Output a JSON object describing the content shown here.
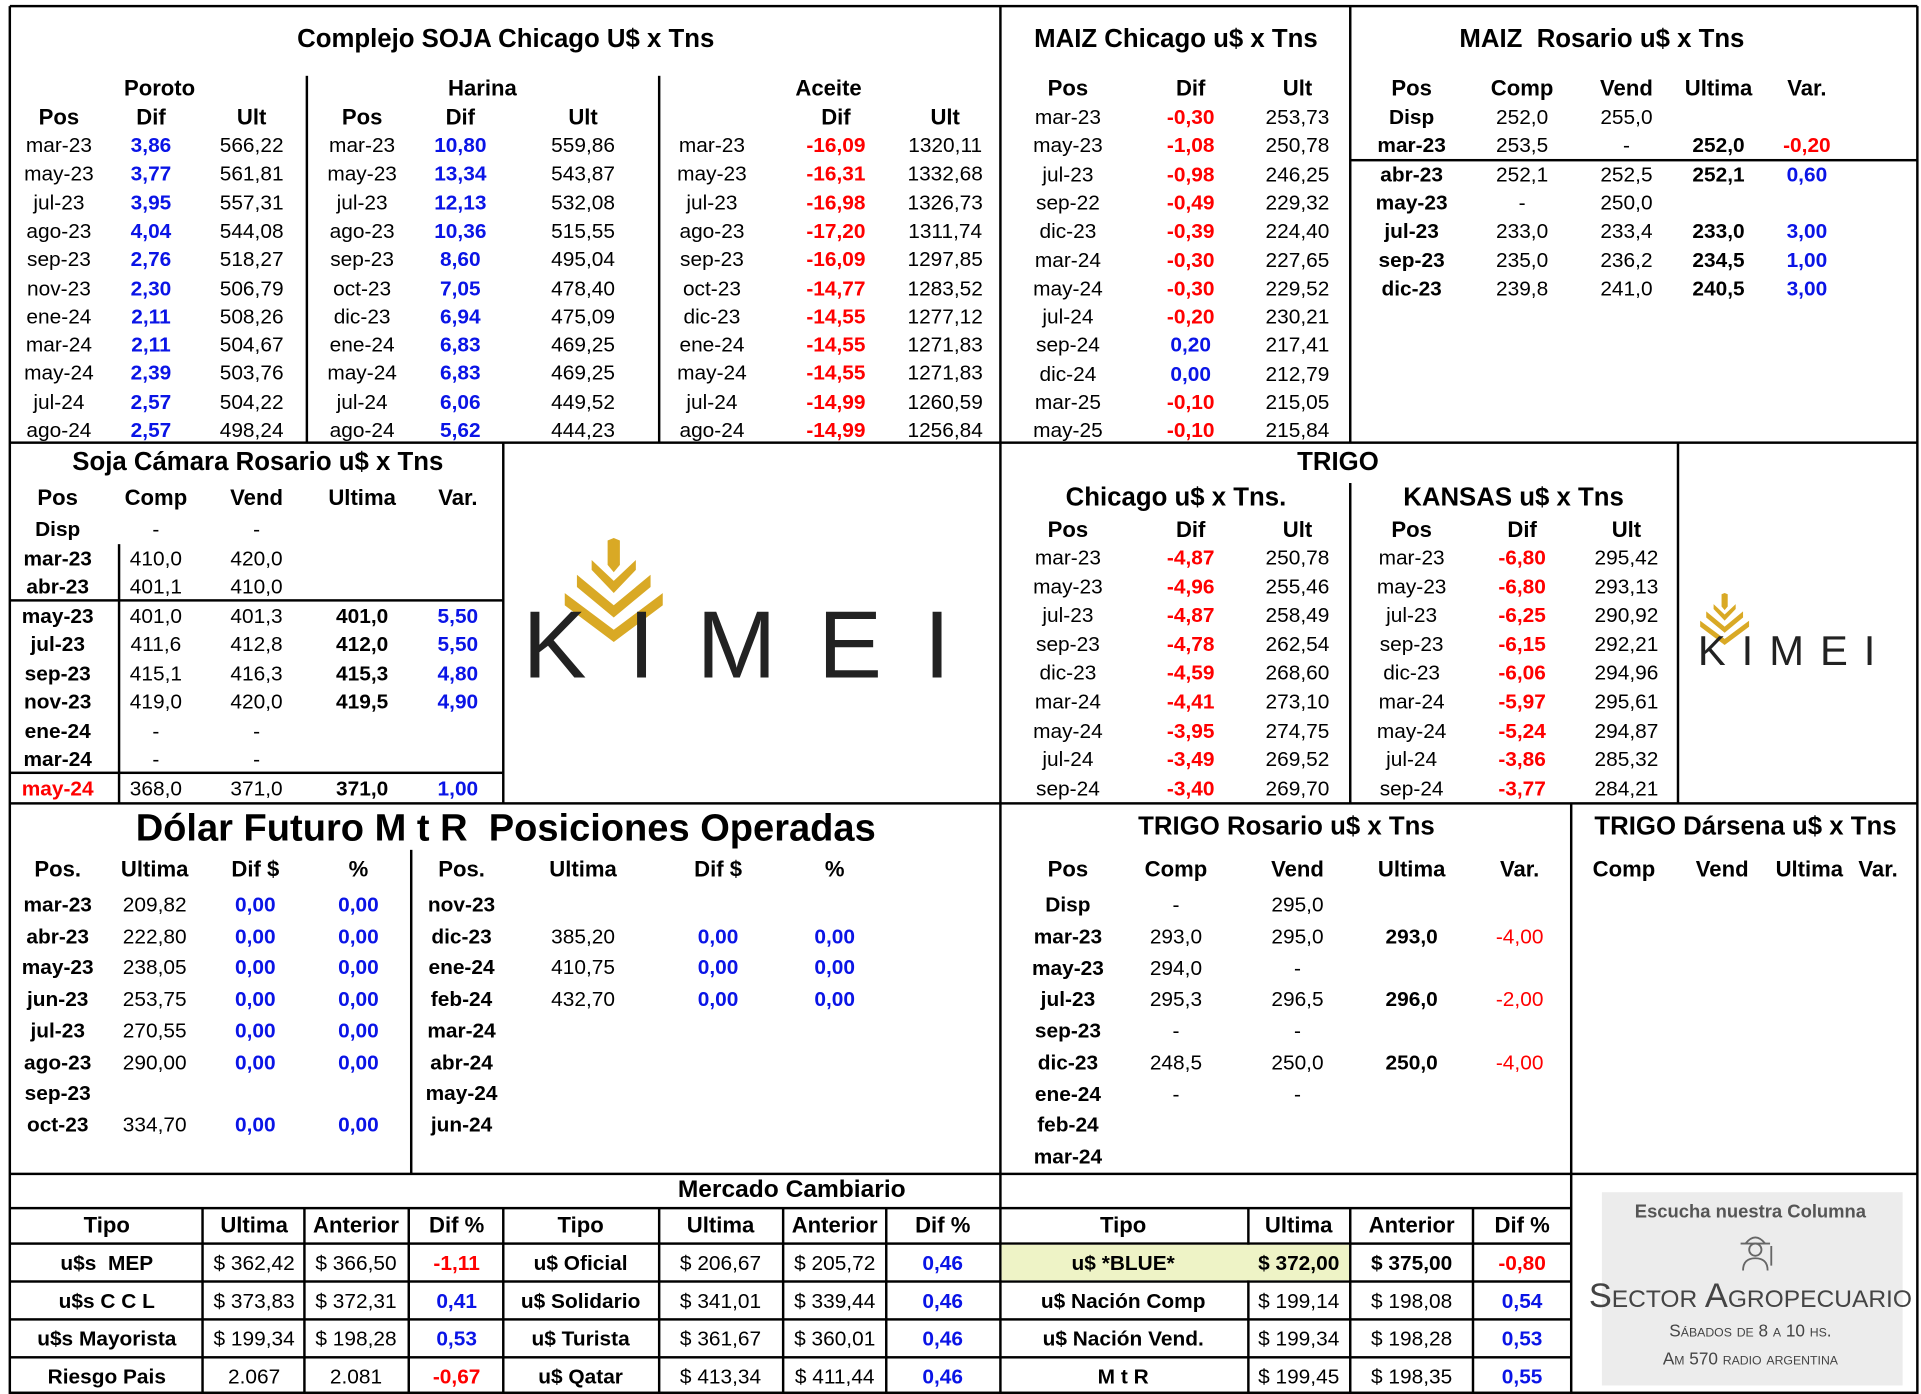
{
  "soja_chicago": {
    "title": "Complejo SOJA Chicago U$ x Tns",
    "groups": [
      {
        "name": "Poroto",
        "columns": [
          "Pos",
          "Dif",
          "Ult"
        ],
        "rows": [
          [
            "mar-23",
            "3,86",
            "566,22"
          ],
          [
            "may-23",
            "3,77",
            "561,81"
          ],
          [
            "jul-23",
            "3,95",
            "557,31"
          ],
          [
            "ago-23",
            "4,04",
            "544,08"
          ],
          [
            "sep-23",
            "2,76",
            "518,27"
          ],
          [
            "nov-23",
            "2,30",
            "506,79"
          ],
          [
            "ene-24",
            "2,11",
            "508,26"
          ],
          [
            "mar-24",
            "2,11",
            "504,67"
          ],
          [
            "may-24",
            "2,39",
            "503,76"
          ],
          [
            "jul-24",
            "2,57",
            "504,22"
          ],
          [
            "ago-24",
            "2,57",
            "498,24"
          ]
        ]
      },
      {
        "name": "Harina",
        "columns": [
          "Pos",
          "Dif",
          "Ult"
        ],
        "rows": [
          [
            "mar-23",
            "10,80",
            "559,86"
          ],
          [
            "may-23",
            "13,34",
            "543,87"
          ],
          [
            "jul-23",
            "12,13",
            "532,08"
          ],
          [
            "ago-23",
            "10,36",
            "515,55"
          ],
          [
            "sep-23",
            "8,60",
            "495,04"
          ],
          [
            "oct-23",
            "7,05",
            "478,40"
          ],
          [
            "dic-23",
            "6,94",
            "475,09"
          ],
          [
            "ene-24",
            "6,83",
            "469,25"
          ],
          [
            "may-24",
            "6,83",
            "469,25"
          ],
          [
            "jul-24",
            "6,06",
            "449,52"
          ],
          [
            "ago-24",
            "5,62",
            "444,23"
          ]
        ]
      },
      {
        "name": "Aceite",
        "columns": [
          "Dif",
          "Ult"
        ],
        "rows": [
          [
            "mar-23",
            "-16,09",
            "1320,11"
          ],
          [
            "may-23",
            "-16,31",
            "1332,68"
          ],
          [
            "jul-23",
            "-16,98",
            "1326,73"
          ],
          [
            "ago-23",
            "-17,20",
            "1311,74"
          ],
          [
            "sep-23",
            "-16,09",
            "1297,85"
          ],
          [
            "oct-23",
            "-14,77",
            "1283,52"
          ],
          [
            "dic-23",
            "-14,55",
            "1277,12"
          ],
          [
            "ene-24",
            "-14,55",
            "1271,83"
          ],
          [
            "may-24",
            "-14,55",
            "1271,83"
          ],
          [
            "jul-24",
            "-14,99",
            "1260,59"
          ],
          [
            "ago-24",
            "-14,99",
            "1256,84"
          ]
        ]
      }
    ]
  },
  "maiz_chicago": {
    "title": "MAIZ Chicago u$ x Tns",
    "columns": [
      "Pos",
      "Dif",
      "Ult"
    ],
    "rows": [
      [
        "mar-23",
        "-0,30",
        "253,73"
      ],
      [
        "may-23",
        "-1,08",
        "250,78"
      ],
      [
        "jul-23",
        "-0,98",
        "246,25"
      ],
      [
        "sep-22",
        "-0,49",
        "229,32"
      ],
      [
        "dic-23",
        "-0,39",
        "224,40"
      ],
      [
        "mar-24",
        "-0,30",
        "227,65"
      ],
      [
        "may-24",
        "-0,30",
        "229,52"
      ],
      [
        "jul-24",
        "-0,20",
        "230,21"
      ],
      [
        "sep-24",
        "0,20",
        "217,41"
      ],
      [
        "dic-24",
        "0,00",
        "212,79"
      ],
      [
        "mar-25",
        "-0,10",
        "215,05"
      ],
      [
        "may-25",
        "-0,10",
        "215,84"
      ]
    ]
  },
  "maiz_rosario": {
    "title": "MAIZ  Rosario u$ x Tns",
    "columns": [
      "Pos",
      "Comp",
      "Vend",
      "Ultima",
      "Var."
    ],
    "rows": [
      [
        "Disp",
        "252,0",
        "255,0"
      ],
      [
        "mar-23",
        "253,5",
        "-",
        "252,0",
        "-0,20"
      ],
      [
        "abr-23",
        "252,1",
        "252,5",
        "252,1",
        "0,60"
      ],
      [
        "may-23",
        "-",
        "250,0"
      ],
      [
        "jul-23",
        "233,0",
        "233,4",
        "233,0",
        "3,00"
      ],
      [
        "sep-23",
        "235,0",
        "236,2",
        "234,5",
        "1,00"
      ],
      [
        "dic-23",
        "239,8",
        "241,0",
        "240,5",
        "3,00"
      ]
    ]
  },
  "soja_camara": {
    "title": "Soja Cámara Rosario u$ x Tns",
    "columns": [
      "Pos",
      "Comp",
      "Vend",
      "Ultima",
      "Var."
    ],
    "rows": [
      [
        "Disp",
        "-",
        "-"
      ],
      [
        "mar-23",
        "410,0",
        "420,0"
      ],
      [
        "abr-23",
        "401,1",
        "410,0"
      ],
      [
        "may-23",
        "401,0",
        "401,3",
        "401,0",
        "5,50"
      ],
      [
        "jul-23",
        "411,6",
        "412,8",
        "412,0",
        "5,50"
      ],
      [
        "sep-23",
        "415,1",
        "416,3",
        "415,3",
        "4,80"
      ],
      [
        "nov-23",
        "419,0",
        "420,0",
        "419,5",
        "4,90"
      ],
      [
        "ene-24",
        "-",
        "-"
      ],
      [
        "mar-24",
        "-",
        "-"
      ],
      [
        "may-24",
        "368,0",
        "371,0",
        "371,0",
        "1,00"
      ]
    ]
  },
  "logo": {
    "text": "KIMEI"
  },
  "trigo": {
    "title": "TRIGO",
    "chicago": {
      "title": "Chicago u$ x Tns.",
      "columns": [
        "Pos",
        "Dif",
        "Ult"
      ],
      "rows": [
        [
          "mar-23",
          "-4,87",
          "250,78"
        ],
        [
          "may-23",
          "-4,96",
          "255,46"
        ],
        [
          "jul-23",
          "-4,87",
          "258,49"
        ],
        [
          "sep-23",
          "-4,78",
          "262,54"
        ],
        [
          "dic-23",
          "-4,59",
          "268,60"
        ],
        [
          "mar-24",
          "-4,41",
          "273,10"
        ],
        [
          "may-24",
          "-3,95",
          "274,75"
        ],
        [
          "jul-24",
          "-3,49",
          "269,52"
        ],
        [
          "sep-24",
          "-3,40",
          "269,70"
        ]
      ]
    },
    "kansas": {
      "title": "KANSAS u$ x Tns",
      "columns": [
        "Pos",
        "Dif",
        "Ult"
      ],
      "rows": [
        [
          "mar-23",
          "-6,80",
          "295,42"
        ],
        [
          "may-23",
          "-6,80",
          "293,13"
        ],
        [
          "jul-23",
          "-6,25",
          "290,92"
        ],
        [
          "sep-23",
          "-6,15",
          "292,21"
        ],
        [
          "dic-23",
          "-6,06",
          "294,96"
        ],
        [
          "mar-24",
          "-5,97",
          "295,61"
        ],
        [
          "may-24",
          "-5,24",
          "294,87"
        ],
        [
          "jul-24",
          "-3,86",
          "285,32"
        ],
        [
          "sep-24",
          "-3,77",
          "284,21"
        ]
      ]
    }
  },
  "dolar_futuro": {
    "title": "Dólar Futuro M t R  Posiciones Operadas",
    "tables": [
      {
        "columns": [
          "Pos.",
          "Ultima",
          "Dif $",
          "%"
        ],
        "rows": [
          [
            "mar-23",
            "209,82",
            "0,00",
            "0,00"
          ],
          [
            "abr-23",
            "222,80",
            "0,00",
            "0,00"
          ],
          [
            "may-23",
            "238,05",
            "0,00",
            "0,00"
          ],
          [
            "jun-23",
            "253,75",
            "0,00",
            "0,00"
          ],
          [
            "jul-23",
            "270,55",
            "0,00",
            "0,00"
          ],
          [
            "ago-23",
            "290,00",
            "0,00",
            "0,00"
          ],
          [
            "sep-23"
          ],
          [
            "oct-23",
            "334,70",
            "0,00",
            "0,00"
          ]
        ]
      },
      {
        "columns": [
          "Pos.",
          "Ultima",
          "Dif $",
          "%"
        ],
        "rows": [
          [
            "nov-23"
          ],
          [
            "dic-23",
            "385,20",
            "0,00",
            "0,00"
          ],
          [
            "ene-24",
            "410,75",
            "0,00",
            "0,00"
          ],
          [
            "feb-24",
            "432,70",
            "0,00",
            "0,00"
          ],
          [
            "mar-24"
          ],
          [
            "abr-24"
          ],
          [
            "may-24"
          ],
          [
            "jun-24"
          ]
        ]
      }
    ]
  },
  "trigo_rosario": {
    "title": "TRIGO Rosario u$ x Tns",
    "columns": [
      "Pos",
      "Comp",
      "Vend",
      "Ultima",
      "Var."
    ],
    "rows": [
      [
        "Disp",
        "-",
        "295,0"
      ],
      [
        "mar-23",
        "293,0",
        "295,0",
        "293,0",
        "-4,00"
      ],
      [
        "may-23",
        "294,0",
        "-"
      ],
      [
        "jul-23",
        "295,3",
        "296,5",
        "296,0",
        "-2,00"
      ],
      [
        "sep-23",
        "-",
        "-"
      ],
      [
        "dic-23",
        "248,5",
        "250,0",
        "250,0",
        "-4,00"
      ],
      [
        "ene-24",
        "-",
        "-"
      ],
      [
        "feb-24"
      ],
      [
        "mar-24"
      ]
    ]
  },
  "trigo_darsena": {
    "title": "TRIGO Dársena u$ x Tns",
    "columns": [
      "Comp",
      "Vend",
      "Ultima",
      "Var."
    ]
  },
  "mercado_cambiario": {
    "title": "Mercado Cambiario",
    "groups": [
      {
        "columns": [
          "Tipo",
          "Ultima",
          "Anterior",
          "Dif %"
        ],
        "rows": [
          [
            "u$s  MEP",
            "$ 362,42",
            "$ 366,50",
            "-1,11"
          ],
          [
            "u$s C C L",
            "$ 373,83",
            "$ 372,31",
            "0,41"
          ],
          [
            "u$s Mayorista",
            "$ 199,34",
            "$ 198,28",
            "0,53"
          ],
          [
            "Riesgo Pais",
            "2.067",
            "2.081",
            "-0,67"
          ]
        ]
      },
      {
        "columns": [
          "Tipo",
          "Ultima",
          "Anterior",
          "Dif %"
        ],
        "rows": [
          [
            "u$ Oficial",
            "$ 206,67",
            "$ 205,72",
            "0,46"
          ],
          [
            "u$ Solidario",
            "$ 341,01",
            "$ 339,44",
            "0,46"
          ],
          [
            "u$ Turista",
            "$ 361,67",
            "$ 360,01",
            "0,46"
          ],
          [
            "u$ Qatar",
            "$ 413,34",
            "$ 411,44",
            "0,46"
          ]
        ]
      },
      {
        "columns": [
          "Tipo",
          "Ultima",
          "Anterior",
          "Dif %"
        ],
        "rows": [
          [
            "u$ *BLUE*",
            "$ 372,00",
            "$ 375,00",
            "-0,80"
          ],
          [
            "u$ Nación Comp",
            "$ 199,14",
            "$ 198,08",
            "0,54"
          ],
          [
            "u$ Nación Vend.",
            "$ 199,34",
            "$ 198,28",
            "0,53"
          ],
          [
            "M t R",
            "$ 199,45",
            "$ 198,35",
            "0,55"
          ]
        ]
      }
    ]
  },
  "ad": {
    "heading": "Escucha nuestra Columna",
    "title": "Sector Agropecuario",
    "schedule": "Sábados de 8 a 10 hs.",
    "station": "Am 570 radio argentina"
  }
}
